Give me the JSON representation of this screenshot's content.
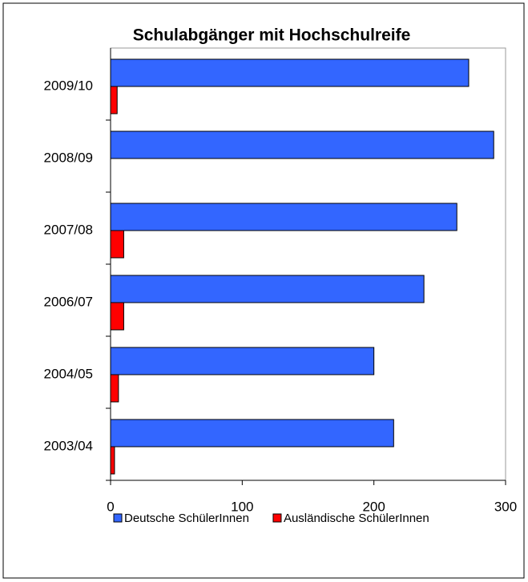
{
  "chart_data": {
    "type": "hbar",
    "title": "Schulabgänger mit Hochschulreife",
    "categories": [
      "2009/10",
      "2008/09",
      "2007/08",
      "2006/07",
      "2004/05",
      "2003/04"
    ],
    "series": [
      {
        "name": "Deutsche SchülerInnen",
        "color": "#3366ff",
        "values": [
          272,
          291,
          263,
          238,
          200,
          215
        ]
      },
      {
        "name": "Ausländische SchülerInnen",
        "color": "#ff0000",
        "values": [
          5,
          0,
          10,
          10,
          6,
          3
        ]
      }
    ],
    "xlim": [
      0,
      300
    ],
    "xticks": [
      0,
      100,
      200,
      300
    ],
    "grid": false,
    "legend": "bottom"
  }
}
